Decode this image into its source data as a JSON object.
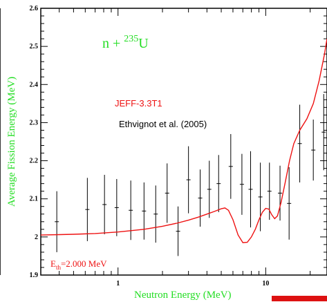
{
  "chart_data": {
    "type": "line",
    "title": "",
    "reaction": {
      "prefix": "n + ",
      "mass": "235",
      "element": "U"
    },
    "xlabel": "Neutron Energy (MeV)",
    "ylabel": "Average Fission Energy (MeV)",
    "xscale": "log",
    "xlim": [
      0.3,
      26
    ],
    "ylim": [
      1.9,
      2.6
    ],
    "x_ticks": [
      {
        "value": 1,
        "label": "1"
      },
      {
        "value": 10,
        "label": "10"
      }
    ],
    "y_ticks": [
      {
        "value": 1.9,
        "label": "1.9"
      },
      {
        "value": 2.0,
        "label": "2"
      },
      {
        "value": 2.1,
        "label": "2.1"
      },
      {
        "value": 2.2,
        "label": "2.2"
      },
      {
        "value": 2.3,
        "label": "2.3"
      },
      {
        "value": 2.4,
        "label": "2.4"
      },
      {
        "value": 2.5,
        "label": "2.5"
      },
      {
        "value": 2.6,
        "label": "2.6"
      }
    ],
    "grid": false,
    "legend": [
      "JEFF-3.3T1",
      "Ethvignot et al. (2005)"
    ],
    "annotation": {
      "prefix": "E",
      "sub": "th",
      "suffix": "=2.000 MeV"
    },
    "series": [
      {
        "name": "JEFF-3.3T1",
        "color": "#ee1111",
        "x": [
          0.3,
          0.4,
          0.5,
          0.7,
          1.0,
          1.5,
          2.0,
          2.5,
          3.0,
          3.5,
          4.0,
          4.5,
          5.0,
          5.3,
          5.6,
          6.0,
          6.5,
          7.0,
          7.5,
          8.0,
          8.5,
          9.0,
          9.5,
          10.0,
          10.5,
          11.0,
          11.5,
          12.0,
          12.7,
          13.5,
          14.5,
          15.5,
          17.0,
          19.0,
          21.0,
          23.0,
          25.0,
          26.0
        ],
        "y": [
          2.005,
          2.006,
          2.007,
          2.009,
          2.013,
          2.02,
          2.028,
          2.036,
          2.044,
          2.052,
          2.06,
          2.067,
          2.074,
          2.076,
          2.07,
          2.045,
          2.005,
          1.985,
          1.986,
          2.0,
          2.02,
          2.045,
          2.065,
          2.075,
          2.073,
          2.058,
          2.048,
          2.055,
          2.09,
          2.14,
          2.2,
          2.245,
          2.28,
          2.31,
          2.35,
          2.41,
          2.48,
          2.52
        ]
      }
    ],
    "error_points": [
      {
        "x": 0.385,
        "y": 2.04,
        "err": 0.08
      },
      {
        "x": 0.62,
        "y": 2.072,
        "err": 0.083
      },
      {
        "x": 0.81,
        "y": 2.085,
        "err": 0.078
      },
      {
        "x": 0.98,
        "y": 2.077,
        "err": 0.075
      },
      {
        "x": 1.22,
        "y": 2.07,
        "err": 0.078
      },
      {
        "x": 1.5,
        "y": 2.068,
        "err": 0.075
      },
      {
        "x": 1.8,
        "y": 2.06,
        "err": 0.075
      },
      {
        "x": 2.15,
        "y": 2.115,
        "err": 0.078
      },
      {
        "x": 2.55,
        "y": 2.015,
        "err": 0.065
      },
      {
        "x": 3.0,
        "y": 2.15,
        "err": 0.088
      },
      {
        "x": 3.6,
        "y": 2.102,
        "err": 0.075
      },
      {
        "x": 4.15,
        "y": 2.125,
        "err": 0.075
      },
      {
        "x": 4.8,
        "y": 2.14,
        "err": 0.075
      },
      {
        "x": 5.8,
        "y": 2.185,
        "err": 0.085
      },
      {
        "x": 6.9,
        "y": 2.138,
        "err": 0.08
      },
      {
        "x": 7.9,
        "y": 2.125,
        "err": 0.1
      },
      {
        "x": 9.2,
        "y": 2.105,
        "err": 0.09
      },
      {
        "x": 10.6,
        "y": 2.12,
        "err": 0.075
      },
      {
        "x": 12.5,
        "y": 2.115,
        "err": 0.072
      },
      {
        "x": 14.4,
        "y": 2.088,
        "err": 0.095
      },
      {
        "x": 17.0,
        "y": 2.245,
        "err": 0.102
      },
      {
        "x": 21.0,
        "y": 2.228,
        "err": 0.08
      },
      {
        "x": 24.7,
        "y": 2.275,
        "err": 0.1
      }
    ]
  }
}
